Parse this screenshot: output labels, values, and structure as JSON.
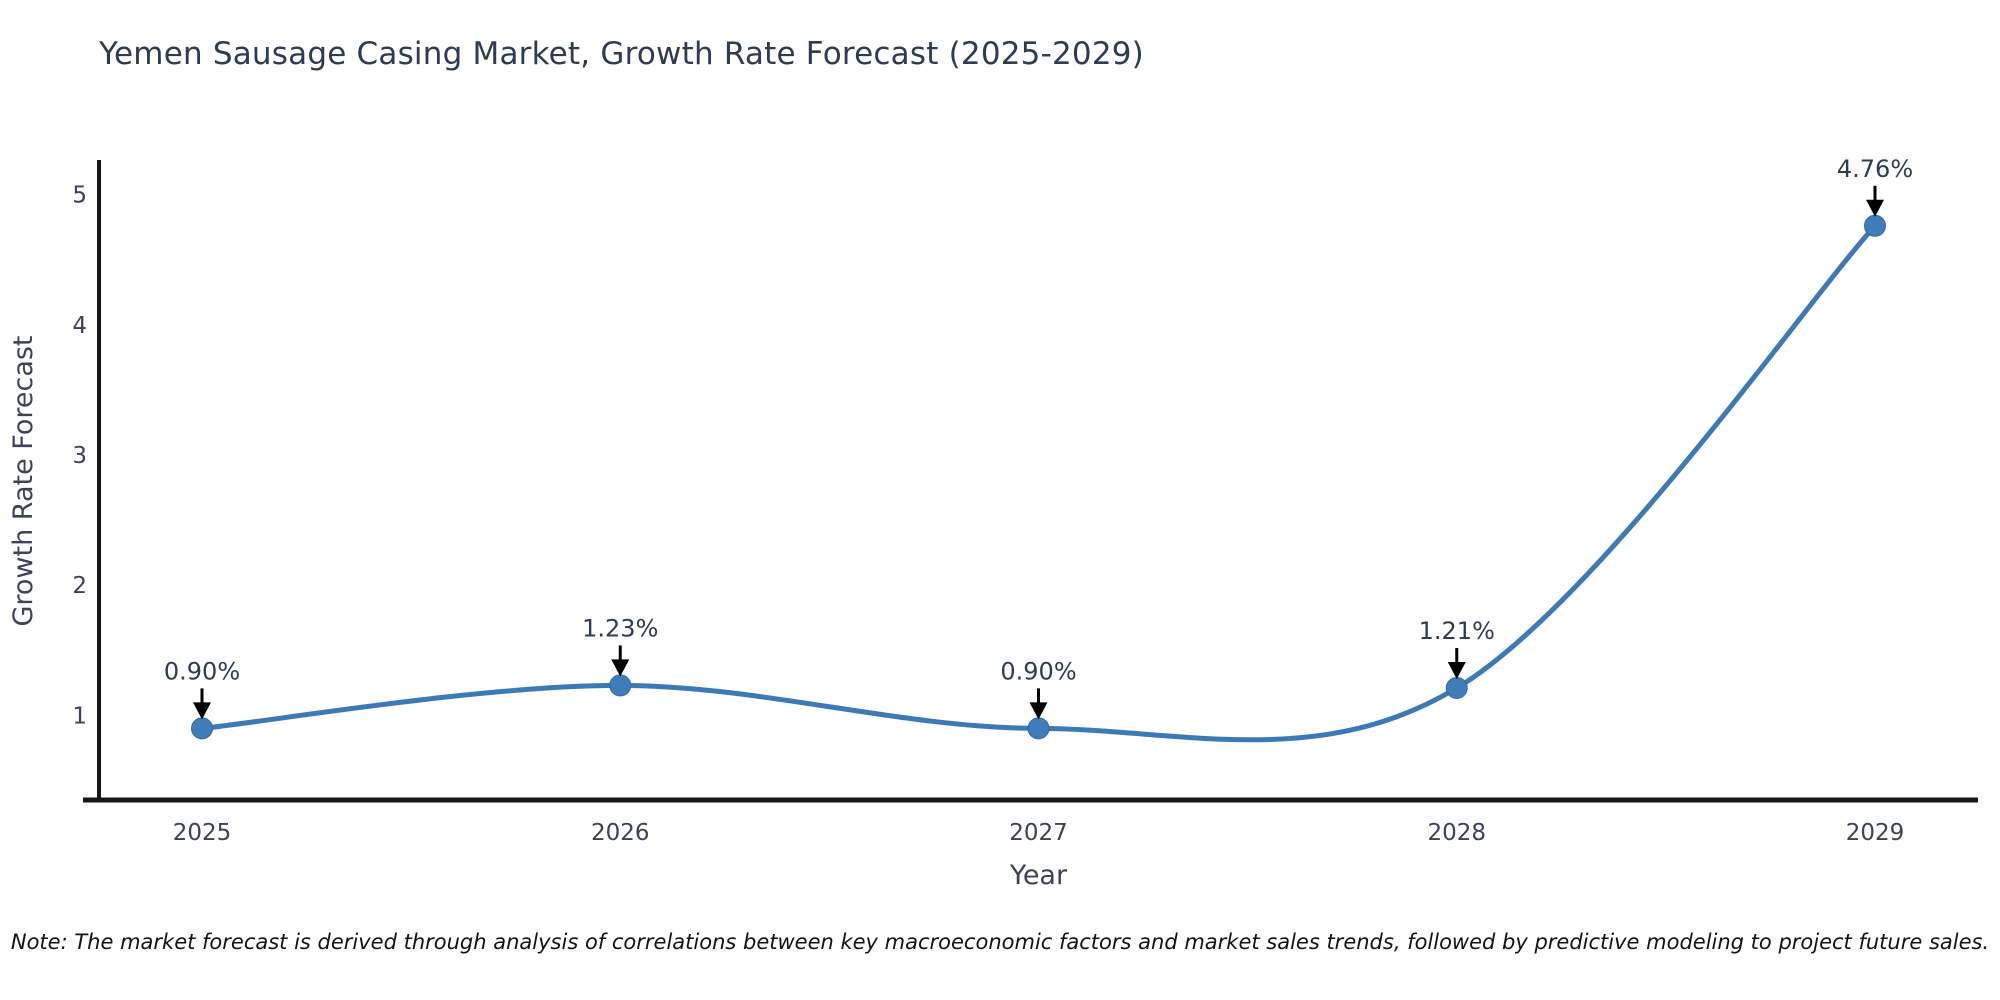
{
  "chart_data": {
    "type": "line",
    "title": "Yemen Sausage Casing Market, Growth Rate Forecast (2025-2029)",
    "xlabel": "Year",
    "ylabel": "Growth Rate Forecast",
    "categories": [
      "2025",
      "2026",
      "2027",
      "2028",
      "2029"
    ],
    "series": [
      {
        "name": "Growth Rate Forecast",
        "values": [
          0.9,
          1.23,
          0.9,
          1.21,
          4.76
        ]
      }
    ],
    "point_labels": [
      "0.90%",
      "1.23%",
      "0.90%",
      "1.21%",
      "4.76%"
    ],
    "yticks": [
      1,
      2,
      3,
      4,
      5
    ],
    "ylim": [
      0.35,
      5.25
    ],
    "grid": false,
    "legend": "none",
    "line_shape": "spline",
    "note": "Note: The market forecast is derived through analysis of correlations between key macroeconomic factors and market sales trends, followed by predictive modeling to project future sales.",
    "colors": {
      "line": "#3c79b5",
      "marker_fill": "#3f7cba",
      "marker_stroke": "#2f6ba3",
      "annotation_text": "#2f3b52",
      "annotation_arrow": "#000000",
      "axis_line": "#16161d",
      "tick_text": "#3c4257",
      "axis_title_text": "#3c4257",
      "title_text": "#2f3b52",
      "note_text": "#131313"
    }
  }
}
